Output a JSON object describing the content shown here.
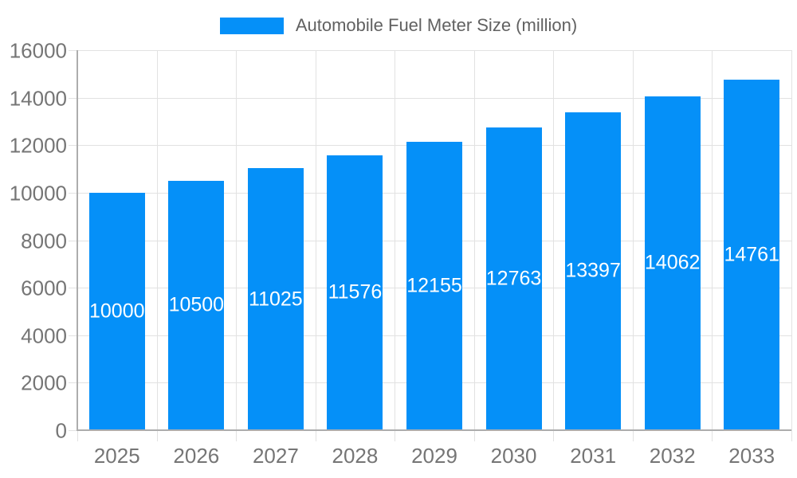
{
  "chart_data": {
    "type": "bar",
    "title": "",
    "legend": {
      "label": "Automobile Fuel Meter Size (million)",
      "position": "top"
    },
    "categories": [
      "2025",
      "2026",
      "2027",
      "2028",
      "2029",
      "2030",
      "2031",
      "2032",
      "2033"
    ],
    "values": [
      10000,
      10500,
      11025,
      11576,
      12155,
      12763,
      13397,
      14062,
      14761
    ],
    "xlabel": "",
    "ylabel": "",
    "ylim": [
      0,
      16000
    ],
    "yticks": [
      0,
      2000,
      4000,
      6000,
      8000,
      10000,
      12000,
      14000,
      16000
    ],
    "grid": true,
    "value_labels": "inside-center",
    "colors": {
      "bar": "#0590f8",
      "value_label": "#ffffff",
      "axis_line": "#adadad",
      "gridline": "#e2e2e2",
      "tick": "#e2e2e2",
      "axis_text": "#757575",
      "legend_text": "#616161",
      "background": "#ffffff"
    }
  }
}
